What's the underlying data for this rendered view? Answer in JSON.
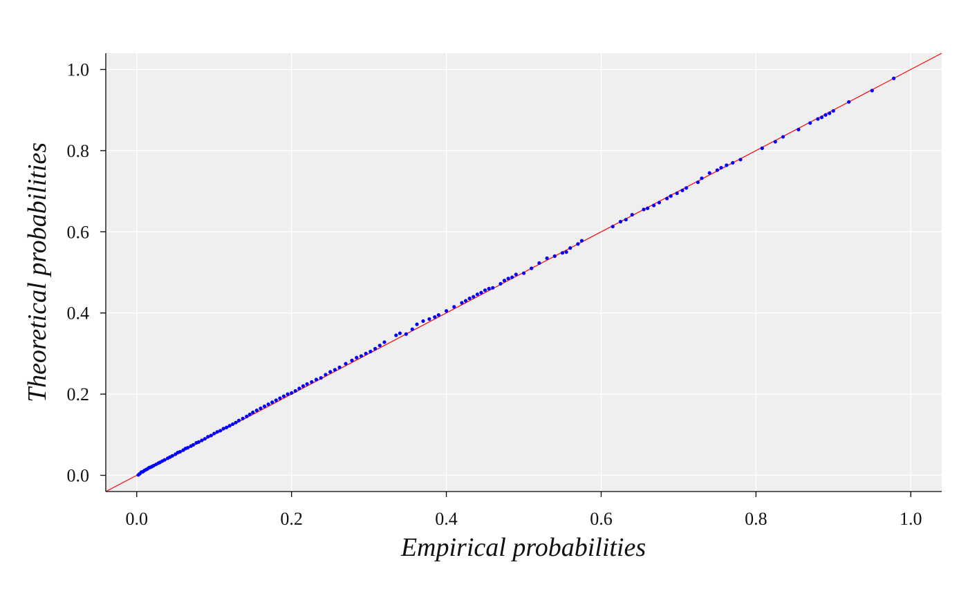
{
  "chart_data": {
    "type": "scatter",
    "title": "",
    "xlabel": "Empirical probabilities",
    "ylabel": "Theoretical probabilities",
    "xlim": [
      -0.04,
      1.04
    ],
    "ylim": [
      -0.04,
      1.04
    ],
    "xticks": [
      0.0,
      0.2,
      0.4,
      0.6,
      0.8,
      1.0
    ],
    "yticks": [
      0.0,
      0.2,
      0.4,
      0.6,
      0.8,
      1.0
    ],
    "xtick_labels": [
      "0.0",
      "0.2",
      "0.4",
      "0.6",
      "0.8",
      "1.0"
    ],
    "ytick_labels": [
      "0.0",
      "0.2",
      "0.4",
      "0.6",
      "0.8",
      "1.0"
    ],
    "grid": true,
    "legend": "none",
    "reference_line": {
      "type": "identity",
      "color": "#ff0000"
    },
    "colors": {
      "points": "#0000ff",
      "background": "#efefef",
      "grid": "#ffffff",
      "axes": "#000000"
    },
    "points": {
      "x": [
        0.002,
        0.004,
        0.006,
        0.008,
        0.01,
        0.012,
        0.014,
        0.016,
        0.018,
        0.02,
        0.022,
        0.025,
        0.028,
        0.03,
        0.033,
        0.036,
        0.04,
        0.043,
        0.046,
        0.05,
        0.053,
        0.056,
        0.06,
        0.063,
        0.066,
        0.07,
        0.073,
        0.077,
        0.08,
        0.084,
        0.088,
        0.092,
        0.096,
        0.1,
        0.104,
        0.108,
        0.112,
        0.116,
        0.12,
        0.124,
        0.128,
        0.132,
        0.137,
        0.142,
        0.146,
        0.15,
        0.155,
        0.16,
        0.165,
        0.17,
        0.175,
        0.18,
        0.185,
        0.19,
        0.195,
        0.2,
        0.205,
        0.21,
        0.215,
        0.22,
        0.226,
        0.232,
        0.238,
        0.244,
        0.25,
        0.256,
        0.262,
        0.27,
        0.278,
        0.284,
        0.29,
        0.296,
        0.302,
        0.308,
        0.314,
        0.32,
        0.335,
        0.34,
        0.348,
        0.356,
        0.362,
        0.37,
        0.378,
        0.385,
        0.39,
        0.4,
        0.41,
        0.42,
        0.425,
        0.43,
        0.435,
        0.44,
        0.445,
        0.45,
        0.455,
        0.46,
        0.47,
        0.475,
        0.48,
        0.485,
        0.49,
        0.5,
        0.51,
        0.52,
        0.53,
        0.54,
        0.55,
        0.555,
        0.56,
        0.57,
        0.575,
        0.615,
        0.625,
        0.632,
        0.64,
        0.655,
        0.66,
        0.668,
        0.675,
        0.685,
        0.69,
        0.698,
        0.705,
        0.71,
        0.725,
        0.73,
        0.74,
        0.75,
        0.755,
        0.762,
        0.77,
        0.78,
        0.808,
        0.825,
        0.835,
        0.855,
        0.87,
        0.88,
        0.885,
        0.89,
        0.895,
        0.9,
        0.92,
        0.95,
        0.978
      ],
      "y": [
        0.001,
        0.004,
        0.008,
        0.009,
        0.012,
        0.014,
        0.016,
        0.019,
        0.02,
        0.022,
        0.024,
        0.027,
        0.03,
        0.032,
        0.035,
        0.038,
        0.042,
        0.045,
        0.048,
        0.052,
        0.056,
        0.058,
        0.062,
        0.066,
        0.068,
        0.072,
        0.075,
        0.08,
        0.082,
        0.086,
        0.09,
        0.095,
        0.098,
        0.103,
        0.107,
        0.11,
        0.115,
        0.118,
        0.122,
        0.126,
        0.13,
        0.135,
        0.14,
        0.145,
        0.15,
        0.155,
        0.16,
        0.165,
        0.17,
        0.175,
        0.18,
        0.185,
        0.19,
        0.195,
        0.2,
        0.203,
        0.208,
        0.214,
        0.22,
        0.225,
        0.23,
        0.236,
        0.24,
        0.248,
        0.255,
        0.26,
        0.266,
        0.275,
        0.283,
        0.29,
        0.294,
        0.3,
        0.305,
        0.312,
        0.32,
        0.328,
        0.345,
        0.35,
        0.348,
        0.36,
        0.372,
        0.38,
        0.385,
        0.39,
        0.395,
        0.405,
        0.415,
        0.425,
        0.43,
        0.436,
        0.44,
        0.446,
        0.45,
        0.456,
        0.46,
        0.462,
        0.472,
        0.48,
        0.485,
        0.488,
        0.495,
        0.498,
        0.51,
        0.523,
        0.535,
        0.54,
        0.548,
        0.55,
        0.56,
        0.57,
        0.578,
        0.613,
        0.625,
        0.63,
        0.642,
        0.655,
        0.658,
        0.665,
        0.672,
        0.682,
        0.688,
        0.695,
        0.702,
        0.708,
        0.722,
        0.732,
        0.745,
        0.752,
        0.758,
        0.764,
        0.77,
        0.778,
        0.806,
        0.822,
        0.834,
        0.852,
        0.868,
        0.878,
        0.882,
        0.888,
        0.892,
        0.898,
        0.92,
        0.948,
        0.978
      ]
    }
  }
}
